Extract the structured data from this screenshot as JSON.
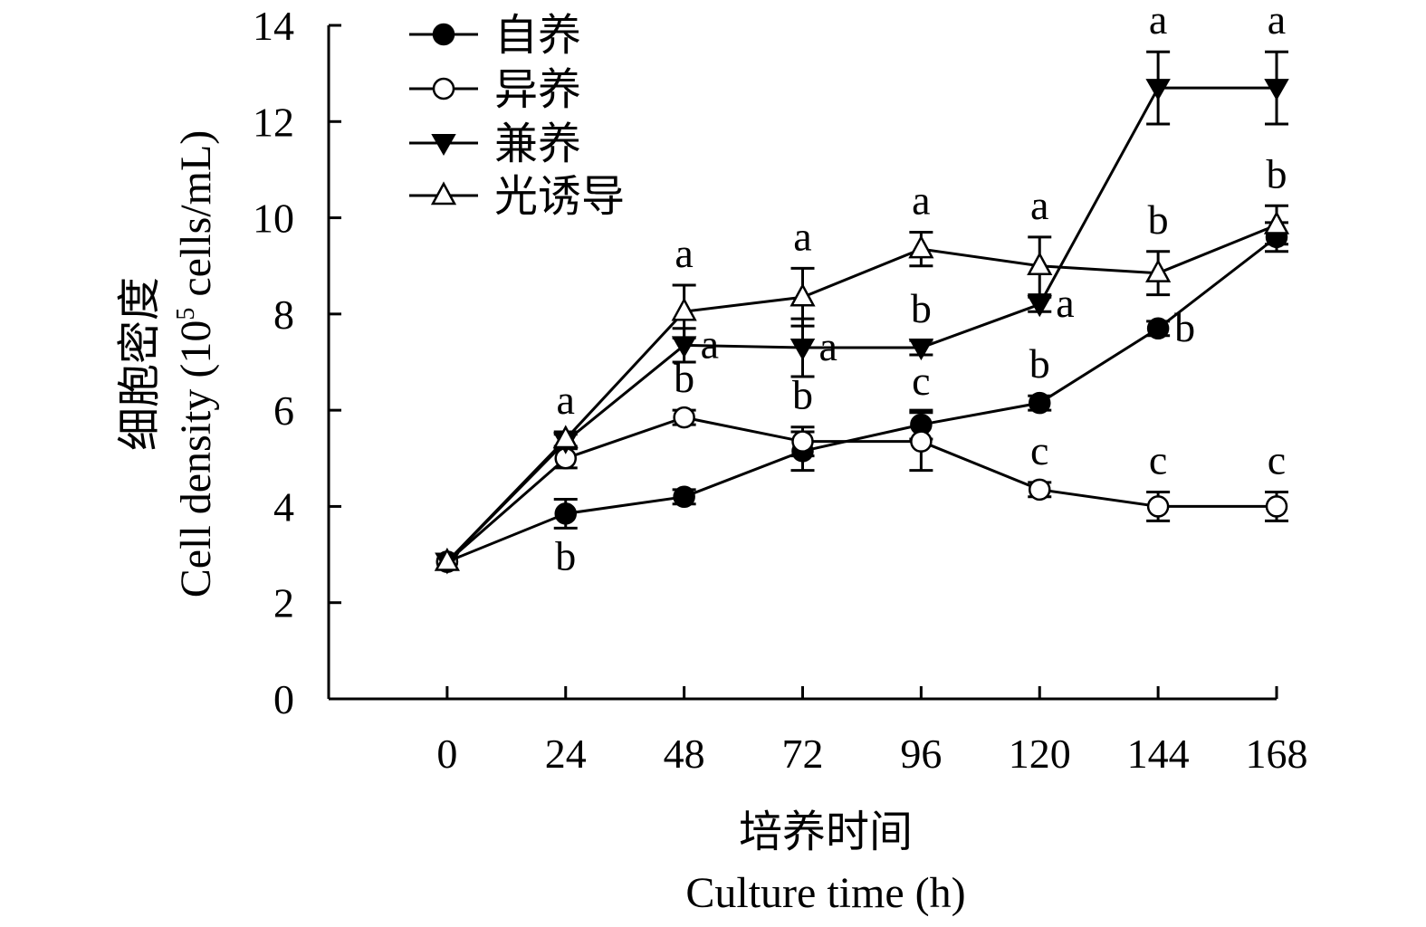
{
  "chart_data": {
    "type": "line",
    "xlabel_cn": "培养时间",
    "xlabel_en": "Culture time (h)",
    "ylabel_cn": "细胞密度",
    "ylabel_en_prefix": "Cell density (10",
    "ylabel_en_exp": "5",
    "ylabel_en_suffix": " cells/mL)",
    "x": [
      0,
      24,
      48,
      72,
      96,
      120,
      144,
      168
    ],
    "x_tick_labels": [
      "0",
      "24",
      "48",
      "72",
      "96",
      "120",
      "144",
      "168"
    ],
    "xlim": [
      -24,
      168
    ],
    "ylim": [
      0,
      14
    ],
    "y_ticks": [
      0,
      2,
      4,
      6,
      8,
      10,
      12,
      14
    ],
    "y_tick_labels": [
      "0",
      "2",
      "4",
      "6",
      "8",
      "10",
      "12",
      "14"
    ],
    "grid": false,
    "legend_position": "top-left",
    "series": [
      {
        "name": "自养",
        "marker": "circle-filled",
        "values": [
          2.85,
          3.85,
          4.2,
          5.15,
          5.7,
          6.15,
          7.7,
          9.6
        ],
        "errors": [
          0.1,
          0.3,
          0.15,
          0.4,
          0.3,
          0.15,
          0.15,
          0.3
        ],
        "letters": [
          "",
          "b",
          "",
          "",
          "",
          "b",
          "b",
          ""
        ],
        "letter_pos": [
          "",
          "below",
          "",
          "",
          "",
          "above",
          "right",
          ""
        ]
      },
      {
        "name": "异养",
        "marker": "circle-open",
        "values": [
          2.85,
          5.0,
          5.85,
          5.35,
          5.35,
          4.35,
          4.0,
          4.0
        ],
        "errors": [
          0.1,
          0.2,
          0.15,
          0.3,
          0.6,
          0.15,
          0.3,
          0.3
        ],
        "letters": [
          "",
          "",
          "b",
          "b",
          "c",
          "c",
          "c",
          "c"
        ],
        "letter_pos": [
          "",
          "",
          "above",
          "above",
          "above",
          "above",
          "above",
          "above"
        ]
      },
      {
        "name": "兼养",
        "marker": "triangle-down-filled",
        "values": [
          2.85,
          5.35,
          7.35,
          7.3,
          7.3,
          8.2,
          12.7,
          12.7
        ],
        "errors": [
          0.1,
          0.15,
          0.35,
          0.6,
          0.15,
          0.15,
          0.75,
          0.75
        ],
        "letters": [
          "",
          "",
          "a",
          "a",
          "b",
          "a",
          "a",
          "a"
        ],
        "letter_pos": [
          "",
          "",
          "right",
          "right",
          "above",
          "right",
          "above",
          "above"
        ]
      },
      {
        "name": "光诱导",
        "marker": "triangle-up-open",
        "values": [
          2.85,
          5.4,
          8.05,
          8.35,
          9.35,
          9.0,
          8.85,
          9.85
        ],
        "errors": [
          0.1,
          0.15,
          0.55,
          0.6,
          0.35,
          0.6,
          0.45,
          0.4
        ],
        "letters": [
          "",
          "a",
          "a",
          "a",
          "a",
          "a",
          "b",
          "b"
        ],
        "letter_pos": [
          "",
          "above",
          "above",
          "above",
          "above",
          "above",
          "above",
          "above"
        ]
      }
    ]
  }
}
